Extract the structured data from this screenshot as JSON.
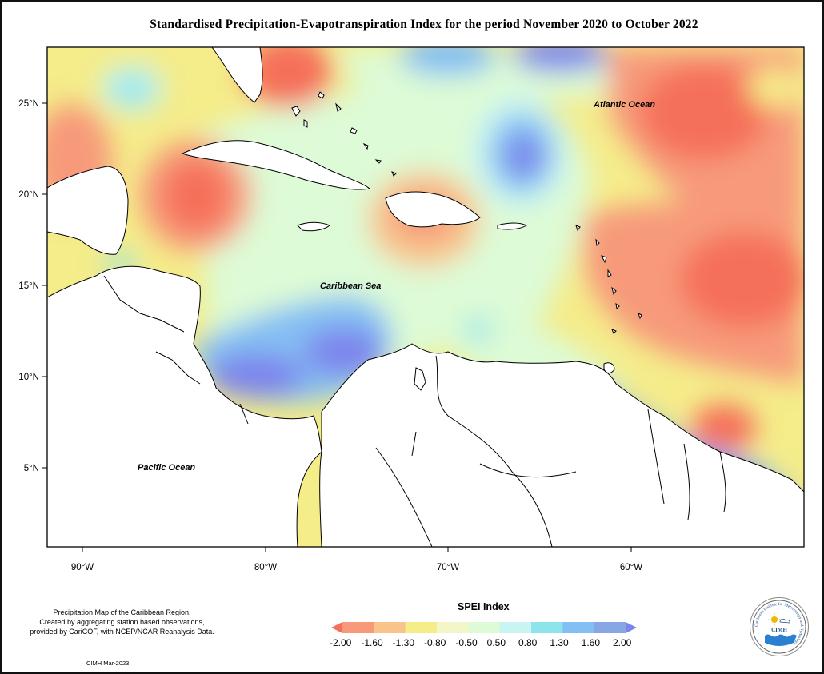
{
  "title": "Standardised Precipitation-Evapotranspiration Index for the period November 2020 to October 2022",
  "map": {
    "lat_labels": [
      "25°N",
      "20°N",
      "15°N",
      "10°N",
      "5°N"
    ],
    "lon_labels": [
      "90°W",
      "80°W",
      "70°W",
      "60°W"
    ],
    "ocean_labels": {
      "atlantic": "Atlantic Ocean",
      "caribbean": "Caribbean Sea",
      "pacific": "Pacific Ocean"
    }
  },
  "footer": {
    "line1": "Precipitation Map of the Caribbean Region.",
    "line2": "Created by aggregating station based observations,",
    "line3": "provided by CariCOF, with NCEP/NCAR Reanalysis Data.",
    "credit": "CIMH Mar-2023"
  },
  "legend": {
    "title": "SPEI Index",
    "ticks": [
      "-2.00",
      "-1.60",
      "-1.30",
      "-0.80",
      "-0.50",
      "0.50",
      "0.80",
      "1.30",
      "1.60",
      "2.00"
    ],
    "colors": [
      "#f5705a",
      "#f79a7a",
      "#f8c48c",
      "#f5ec8a",
      "#f3f6c8",
      "#ddfbd6",
      "#c8f4f2",
      "#8fe4ea",
      "#84bff3",
      "#86a6e4",
      "#7d85ec"
    ]
  },
  "logo": {
    "acronym": "CIMH",
    "ring_text": "Caribbean Institute for Meteorology and Hydrology"
  }
}
